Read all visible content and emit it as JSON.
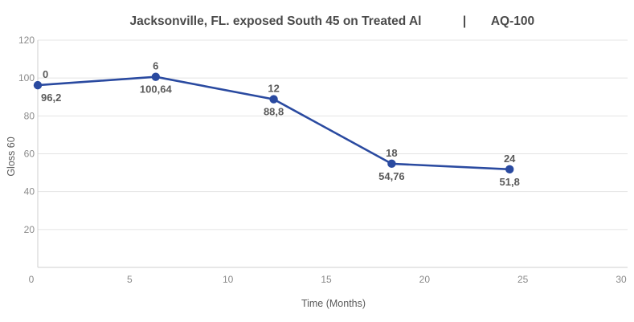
{
  "chart_data": {
    "type": "line",
    "title": "Jacksonville, FL. exposed South 45 on Treated Al",
    "title_separator": "|",
    "title_tag": "AQ-100",
    "xlabel": "Time (Months)",
    "ylabel": "Gloss 60",
    "xlim": [
      0,
      30
    ],
    "ylim": [
      0,
      120
    ],
    "x_ticks": [
      "0",
      "5",
      "10",
      "15",
      "20",
      "25",
      "30"
    ],
    "y_ticks": [
      "20",
      "40",
      "60",
      "80",
      "100",
      "120"
    ],
    "grid": true,
    "legend": "none",
    "color": "#2a4aa0",
    "series": [
      {
        "x": [
          0,
          6,
          12,
          18,
          24
        ],
        "y": [
          96.2,
          100.64,
          88.8,
          54.76,
          51.8
        ],
        "x_labels": [
          "0",
          "6",
          "12",
          "18",
          "24"
        ],
        "y_labels": [
          "96,2",
          "100,64",
          "88,8",
          "54,76",
          "51,8"
        ]
      }
    ]
  }
}
